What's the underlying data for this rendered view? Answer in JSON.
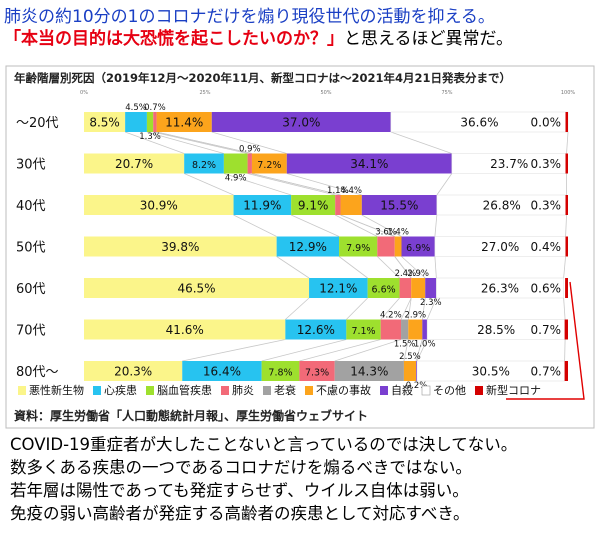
{
  "headline": {
    "line1": "肺炎の約10分の1のコロナだけを煽り現役世代の活動を抑える。",
    "line2_red": "「本当の目的は大恐慌を起こしたいのか？」",
    "line2_black": "と思えるほど異常だ。"
  },
  "chart_data": {
    "type": "bar",
    "orientation": "horizontal",
    "stacked": true,
    "title": "年齢階層別死因（2019年12月〜2020年11月、新型コロナは〜2021年4月21日発表分まで）",
    "source": "資料：厚生労働省「人口動態統計月報」、厚生労働省ウェブサイト",
    "xlim": [
      0,
      100
    ],
    "xticks": [
      "0%",
      "25%",
      "50%",
      "75%",
      "100%"
    ],
    "legend_position": "bottom",
    "categories": [
      "〜20代",
      "30代",
      "40代",
      "50代",
      "60代",
      "70代",
      "80代〜"
    ],
    "series": [
      {
        "name": "悪性新生物",
        "color": "#fbf58a",
        "values": [
          8.5,
          20.7,
          30.9,
          39.8,
          46.5,
          41.6,
          20.3
        ]
      },
      {
        "name": "心疾患",
        "color": "#27c3f0",
        "values": [
          4.5,
          8.2,
          11.9,
          12.9,
          12.1,
          12.6,
          16.4
        ]
      },
      {
        "name": "脳血管疾患",
        "color": "#9ee02e",
        "values": [
          1.3,
          4.9,
          9.1,
          7.9,
          6.6,
          7.1,
          7.8
        ]
      },
      {
        "name": "肺炎",
        "color": "#f26a78",
        "values": [
          0.7,
          0.9,
          1.1,
          3.6,
          2.4,
          4.2,
          7.3
        ]
      },
      {
        "name": "老衰",
        "color": "#a2a2a2",
        "values": [
          0.0,
          0.0,
          0.0,
          0.0,
          0.0,
          1.5,
          14.3
        ]
      },
      {
        "name": "不慮の事故",
        "color": "#fca41c",
        "values": [
          11.4,
          7.2,
          4.4,
          1.4,
          2.9,
          2.9,
          2.5
        ]
      },
      {
        "name": "自殺",
        "color": "#7a3fd0",
        "values": [
          37.0,
          34.1,
          15.5,
          6.9,
          2.3,
          1.0,
          0.2
        ]
      },
      {
        "name": "その他",
        "color": "#ffffff",
        "values": [
          36.6,
          23.7,
          26.8,
          27.0,
          26.3,
          28.5,
          30.5
        ]
      },
      {
        "name": "新型コロナ",
        "color": "#d40000",
        "values": [
          0.0,
          0.3,
          0.3,
          0.4,
          0.6,
          0.7,
          0.7
        ]
      }
    ],
    "labels": [
      {
        "row": 0,
        "series": 0,
        "text": "8.5%"
      },
      {
        "row": 0,
        "series": 1,
        "text": "4.5%"
      },
      {
        "row": 0,
        "series": 2,
        "text": "1.3%"
      },
      {
        "row": 0,
        "series": 3,
        "text": "0.7%"
      },
      {
        "row": 0,
        "series": 5,
        "text": "11.4%"
      },
      {
        "row": 0,
        "series": 6,
        "text": "37.0%"
      },
      {
        "row": 0,
        "series": 7,
        "text": "36.6%"
      },
      {
        "row": 0,
        "series": 8,
        "text": "0.0%"
      },
      {
        "row": 1,
        "series": 0,
        "text": "20.7%"
      },
      {
        "row": 1,
        "series": 1,
        "text": "8.2%"
      },
      {
        "row": 1,
        "series": 2,
        "text": "4.9%"
      },
      {
        "row": 1,
        "series": 3,
        "text": "0.9%"
      },
      {
        "row": 1,
        "series": 5,
        "text": "7.2%"
      },
      {
        "row": 1,
        "series": 6,
        "text": "34.1%"
      },
      {
        "row": 1,
        "series": 7,
        "text": "23.7%"
      },
      {
        "row": 1,
        "series": 8,
        "text": "0.3%"
      },
      {
        "row": 2,
        "series": 0,
        "text": "30.9%"
      },
      {
        "row": 2,
        "series": 1,
        "text": "11.9%"
      },
      {
        "row": 2,
        "series": 2,
        "text": "9.1%"
      },
      {
        "row": 2,
        "series": 3,
        "text": "1.1%"
      },
      {
        "row": 2,
        "series": 5,
        "text": "4.4%"
      },
      {
        "row": 2,
        "series": 6,
        "text": "15.5%"
      },
      {
        "row": 2,
        "series": 7,
        "text": "26.8%"
      },
      {
        "row": 2,
        "series": 8,
        "text": "0.3%"
      },
      {
        "row": 3,
        "series": 0,
        "text": "39.8%"
      },
      {
        "row": 3,
        "series": 1,
        "text": "12.9%"
      },
      {
        "row": 3,
        "series": 2,
        "text": "7.9%"
      },
      {
        "row": 3,
        "series": 3,
        "text": "3.6%"
      },
      {
        "row": 3,
        "series": 5,
        "text": "1.4%"
      },
      {
        "row": 3,
        "series": 6,
        "text": "6.9%"
      },
      {
        "row": 3,
        "series": 7,
        "text": "27.0%"
      },
      {
        "row": 3,
        "series": 8,
        "text": "0.4%"
      },
      {
        "row": 4,
        "series": 0,
        "text": "46.5%"
      },
      {
        "row": 4,
        "series": 1,
        "text": "12.1%"
      },
      {
        "row": 4,
        "series": 2,
        "text": "6.6%"
      },
      {
        "row": 4,
        "series": 3,
        "text": "2.4%"
      },
      {
        "row": 4,
        "series": 5,
        "text": "2.9%"
      },
      {
        "row": 4,
        "series": 6,
        "text": "2.3%"
      },
      {
        "row": 4,
        "series": 7,
        "text": "26.3%"
      },
      {
        "row": 4,
        "series": 8,
        "text": "0.6%"
      },
      {
        "row": 5,
        "series": 0,
        "text": "41.6%"
      },
      {
        "row": 5,
        "series": 1,
        "text": "12.6%"
      },
      {
        "row": 5,
        "series": 2,
        "text": "7.1%"
      },
      {
        "row": 5,
        "series": 3,
        "text": "4.2%"
      },
      {
        "row": 5,
        "series": 4,
        "text": "1.5%"
      },
      {
        "row": 5,
        "series": 5,
        "text": "2.9%"
      },
      {
        "row": 5,
        "series": 6,
        "text": "1.0%"
      },
      {
        "row": 5,
        "series": 7,
        "text": "28.5%"
      },
      {
        "row": 5,
        "series": 8,
        "text": "0.7%"
      },
      {
        "row": 6,
        "series": 0,
        "text": "20.3%"
      },
      {
        "row": 6,
        "series": 1,
        "text": "16.4%"
      },
      {
        "row": 6,
        "series": 2,
        "text": "7.8%"
      },
      {
        "row": 6,
        "series": 3,
        "text": "7.3%"
      },
      {
        "row": 6,
        "series": 4,
        "text": "14.3%"
      },
      {
        "row": 6,
        "series": 5,
        "text": "2.5%"
      },
      {
        "row": 6,
        "series": 6,
        "text": "0.2%"
      },
      {
        "row": 6,
        "series": 7,
        "text": "30.5%"
      },
      {
        "row": 6,
        "series": 8,
        "text": "0.7%"
      }
    ]
  },
  "footer": {
    "line1": "COVID-19重症者が大したことないと言っているのでは決してない。",
    "line2": "数多くある疾患の一つであるコロナだけを煽るべきではない。",
    "line3": "若年層は陽性であっても発症すらせず、ウイルス自体は弱い。",
    "line4": "免疫の弱い高齢者が発症する高齢者の疾患として対応すべき。"
  }
}
